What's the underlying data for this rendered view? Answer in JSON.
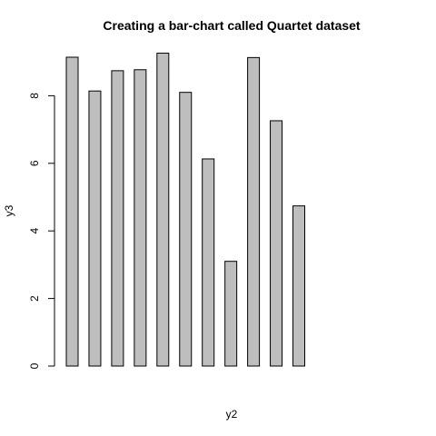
{
  "chart_data": {
    "type": "bar",
    "title": "Creating a bar-chart called Quartet dataset",
    "xlabel": "y2",
    "ylabel": "y3",
    "values": [
      9.14,
      8.14,
      8.74,
      8.77,
      9.26,
      8.1,
      6.13,
      3.1,
      9.13,
      7.26,
      4.74
    ],
    "yticks": [
      0,
      2,
      4,
      6,
      8
    ],
    "ylim": [
      0,
      9.26
    ],
    "bar_color": "#bebebe",
    "edge_color": "#000000",
    "grid": false,
    "legend": false
  }
}
